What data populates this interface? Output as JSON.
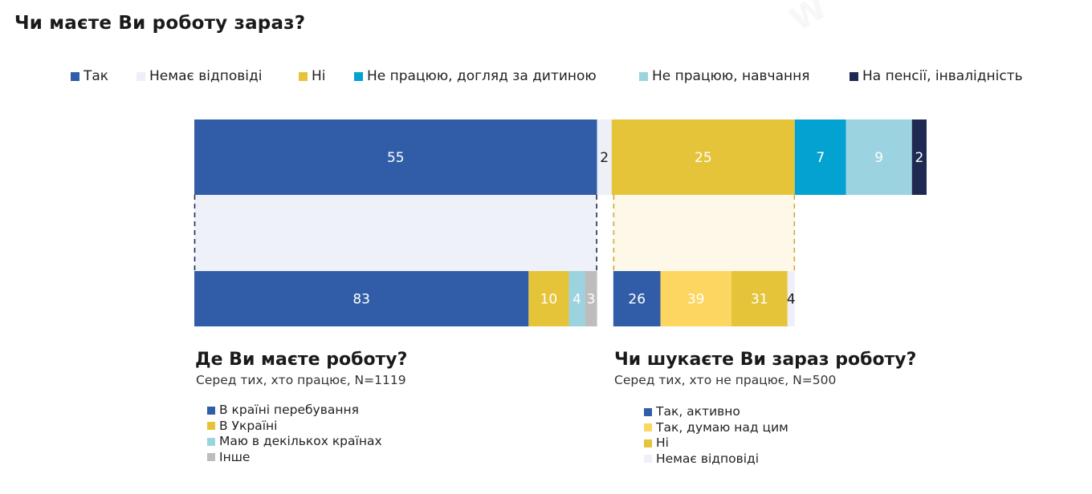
{
  "title": "Чи маєте Ви роботу зараз?",
  "chart_data": [
    {
      "type": "bar",
      "orientation": "horizontal-stacked",
      "title": "Чи маєте Ви роботу зараз?",
      "legend_position": "top",
      "series": [
        {
          "name": "Так",
          "value": 55,
          "color": "#315DA8",
          "label_color": "#ffffff"
        },
        {
          "name": "Немає відповіді",
          "value": 2,
          "color": "#EEF0F7",
          "label_color": "#1a1a1a"
        },
        {
          "name": "Ні",
          "value": 25,
          "color": "#E6C43A",
          "label_color": "#ffffff"
        },
        {
          "name": "Не працюю, догляд за дитиною",
          "value": 7,
          "color": "#03A2D1",
          "label_color": "#ffffff"
        },
        {
          "name": "Не працюю, навчання",
          "value": 9,
          "color": "#9CD3E1",
          "label_color": "#ffffff"
        },
        {
          "name": "На пенсії, інвалідність",
          "value": 2,
          "color": "#1F2A52",
          "label_color": "#ffffff"
        }
      ]
    },
    {
      "type": "bar",
      "orientation": "horizontal-stacked",
      "title": "Де Ви маєте роботу?",
      "subtitle": "Серед тих, хто працює, N=1119",
      "parent_category": "Так",
      "legend_position": "bottom",
      "series": [
        {
          "name": "В країні перебування",
          "value": 83,
          "color": "#315DA8",
          "label_color": "#ffffff"
        },
        {
          "name": "В Україні",
          "value": 10,
          "color": "#E6C43A",
          "label_color": "#ffffff"
        },
        {
          "name": "Маю в декількох країнах",
          "value": 4,
          "color": "#9CD3E1",
          "label_color": "#ffffff"
        },
        {
          "name": "Інше",
          "value": 3,
          "color": "#BDBDBD",
          "label_color": "#ffffff"
        }
      ]
    },
    {
      "type": "bar",
      "orientation": "horizontal-stacked",
      "title": "Чи шукаєте Ви зараз роботу?",
      "subtitle": "Серед тих, хто не працює, N=500",
      "parent_category": "Ні",
      "legend_position": "bottom",
      "series": [
        {
          "name": "Так, активно",
          "value": 26,
          "color": "#315DA8",
          "label_color": "#ffffff"
        },
        {
          "name": "Так, думаю над цим",
          "value": 39,
          "color": "#FDD662",
          "label_color": "#ffffff"
        },
        {
          "name": "Ні",
          "value": 31,
          "color": "#E6C43A",
          "label_color": "#ffffff"
        },
        {
          "name": "Немає відповіді",
          "value": 4,
          "color": "#EEF0F7",
          "label_color": "#1a1a1a"
        }
      ]
    }
  ],
  "panels": {
    "left": {
      "title": "Де Ви маєте роботу?",
      "caption": "Серед тих, хто працює, N=1119",
      "legend": [
        "В країні перебування",
        "В Україні",
        "Маю в декількох країнах",
        "Інше"
      ]
    },
    "right": {
      "title": "Чи шукаєте Ви зараз роботу?",
      "caption": "Серед тих, хто не працює, N=500",
      "legend": [
        "Так, активно",
        "Так, думаю над цим",
        "Ні",
        "Немає відповіді"
      ]
    }
  },
  "colors": {
    "connector_left_fill": "#EEF1F8",
    "connector_left_dash": "#1F2A52",
    "connector_right_fill": "#FDF8E7",
    "connector_right_dash": "#D1A93A"
  }
}
